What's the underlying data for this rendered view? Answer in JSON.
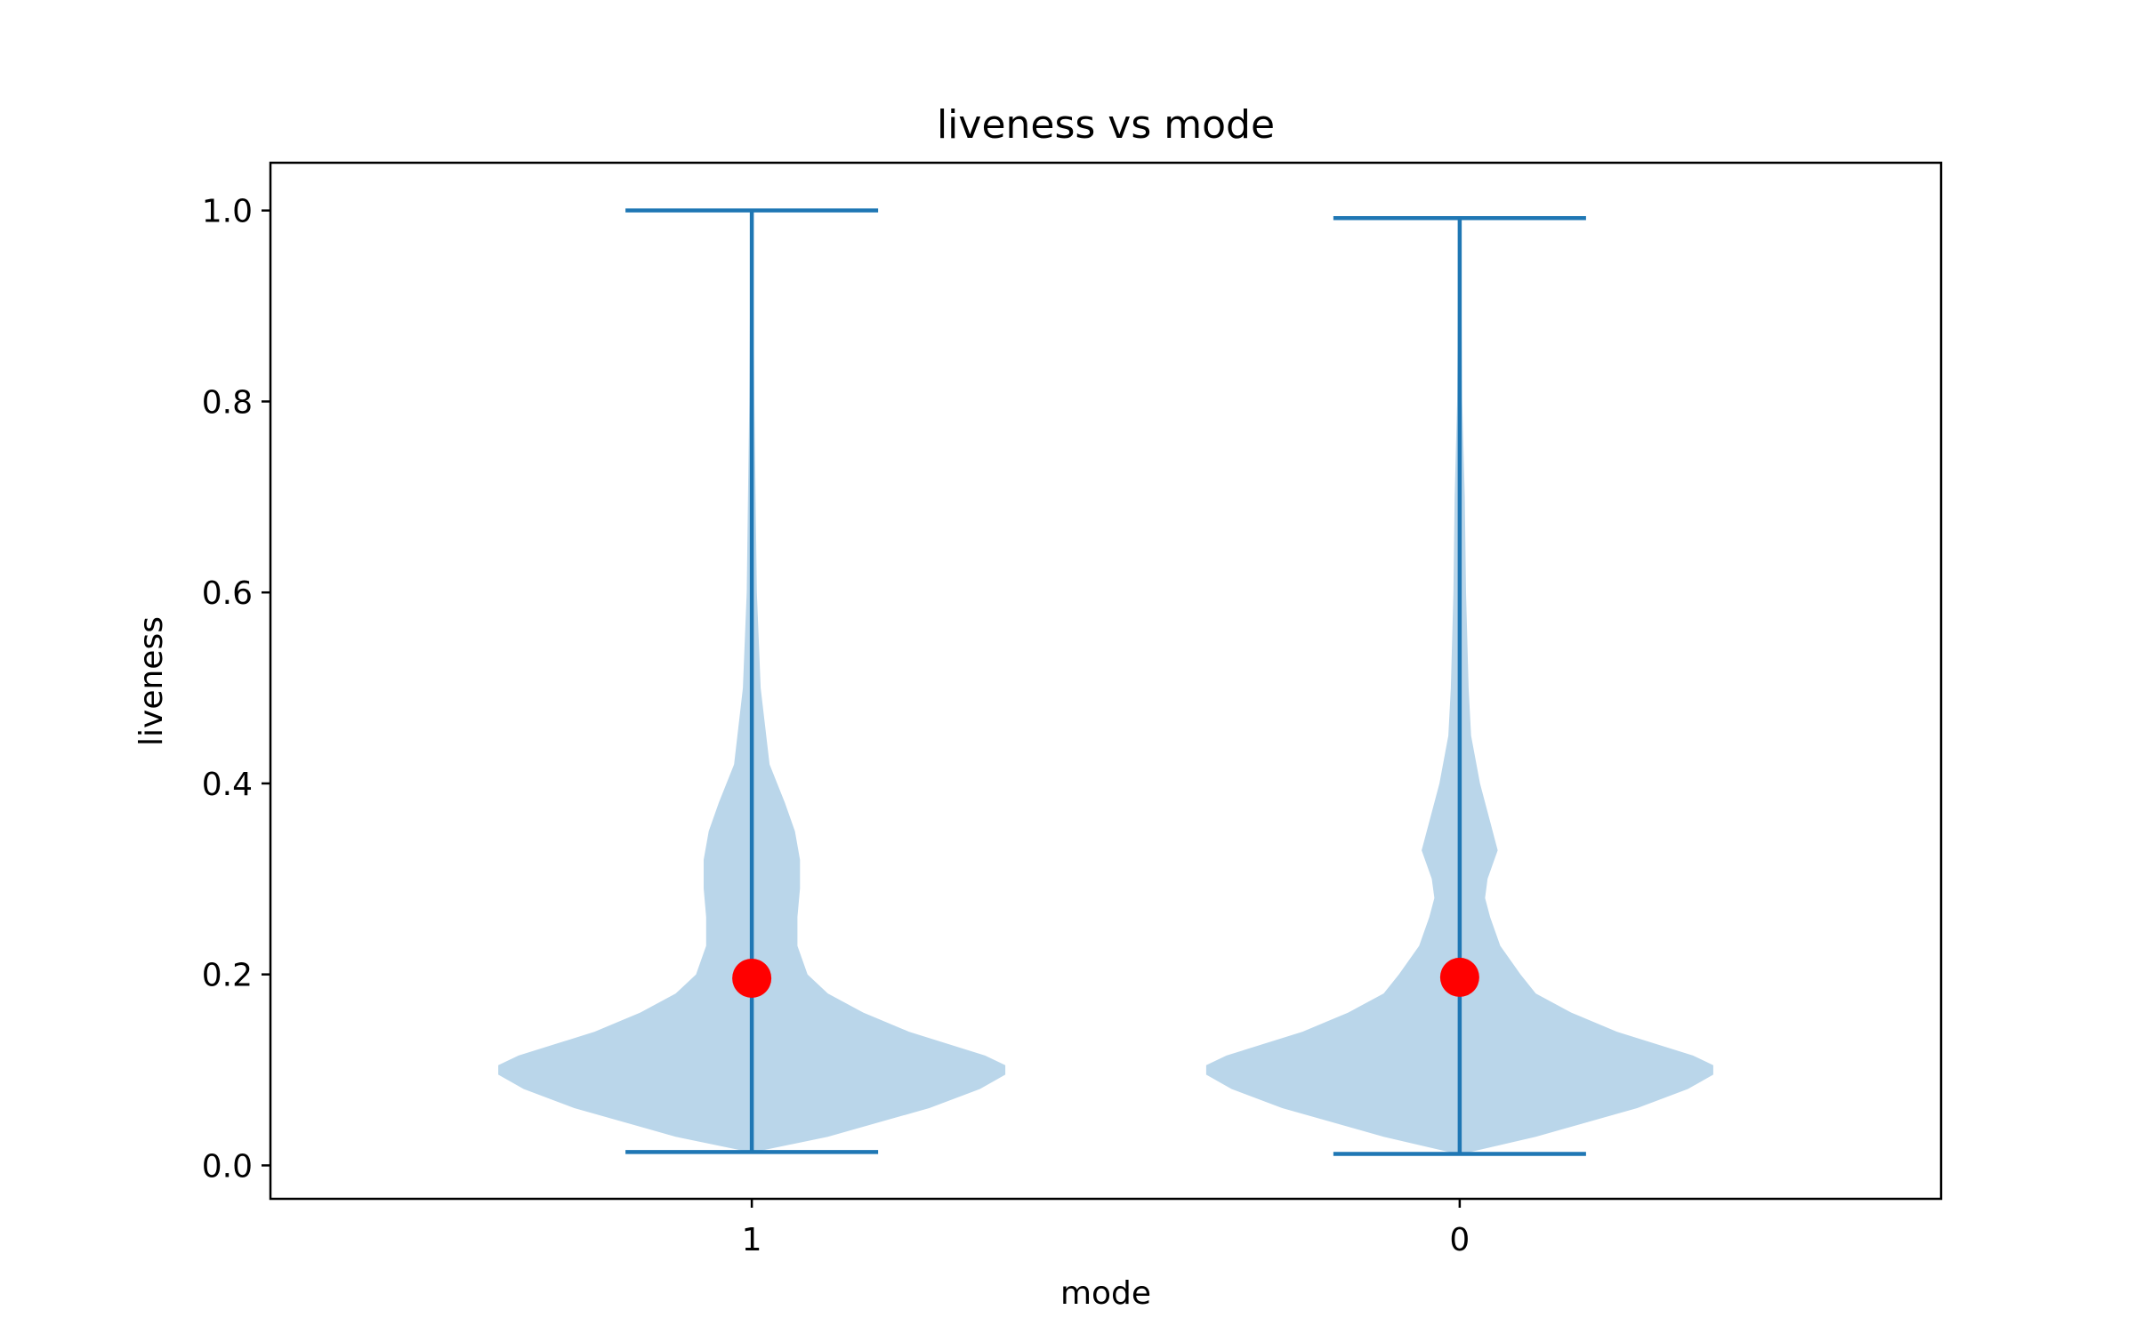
{
  "chart_data": {
    "type": "violin",
    "title": "liveness vs mode",
    "xlabel": "mode",
    "ylabel": "liveness",
    "ylim": [
      -0.035,
      1.05
    ],
    "yticks": [
      0.0,
      0.2,
      0.4,
      0.6,
      0.8,
      1.0
    ],
    "ytick_labels": [
      "0.0",
      "0.2",
      "0.4",
      "0.6",
      "0.8",
      "1.0"
    ],
    "categories": [
      "1",
      "0"
    ],
    "grid": false,
    "colors": {
      "violin_fill": "#bad6ea",
      "violin_lines": "#1f77b4",
      "mean_marker": "#ff0000",
      "axes": "#000000"
    },
    "violins": [
      {
        "category": "1",
        "min": 0.014,
        "max": 1.0,
        "mean": 0.196,
        "density": [
          [
            0.014,
            0.01
          ],
          [
            0.03,
            0.3
          ],
          [
            0.06,
            0.7
          ],
          [
            0.08,
            0.9
          ],
          [
            0.095,
            1.0
          ],
          [
            0.105,
            1.0
          ],
          [
            0.115,
            0.92
          ],
          [
            0.14,
            0.62
          ],
          [
            0.16,
            0.44
          ],
          [
            0.18,
            0.3
          ],
          [
            0.2,
            0.22
          ],
          [
            0.23,
            0.18
          ],
          [
            0.26,
            0.18
          ],
          [
            0.29,
            0.19
          ],
          [
            0.32,
            0.19
          ],
          [
            0.35,
            0.17
          ],
          [
            0.38,
            0.13
          ],
          [
            0.42,
            0.07
          ],
          [
            0.5,
            0.035
          ],
          [
            0.6,
            0.02
          ],
          [
            0.7,
            0.015
          ],
          [
            0.8,
            0.01
          ],
          [
            0.9,
            0.007
          ],
          [
            1.0,
            0.005
          ]
        ]
      },
      {
        "category": "0",
        "min": 0.012,
        "max": 0.992,
        "mean": 0.197,
        "density": [
          [
            0.012,
            0.01
          ],
          [
            0.03,
            0.3
          ],
          [
            0.06,
            0.7
          ],
          [
            0.08,
            0.9
          ],
          [
            0.095,
            1.0
          ],
          [
            0.105,
            1.0
          ],
          [
            0.115,
            0.92
          ],
          [
            0.14,
            0.62
          ],
          [
            0.16,
            0.44
          ],
          [
            0.18,
            0.3
          ],
          [
            0.2,
            0.24
          ],
          [
            0.23,
            0.16
          ],
          [
            0.26,
            0.12
          ],
          [
            0.28,
            0.1
          ],
          [
            0.3,
            0.11
          ],
          [
            0.33,
            0.15
          ],
          [
            0.36,
            0.12
          ],
          [
            0.4,
            0.08
          ],
          [
            0.45,
            0.045
          ],
          [
            0.5,
            0.035
          ],
          [
            0.6,
            0.025
          ],
          [
            0.7,
            0.02
          ],
          [
            0.8,
            0.01
          ],
          [
            0.9,
            0.007
          ],
          [
            0.992,
            0.005
          ]
        ]
      }
    ]
  }
}
